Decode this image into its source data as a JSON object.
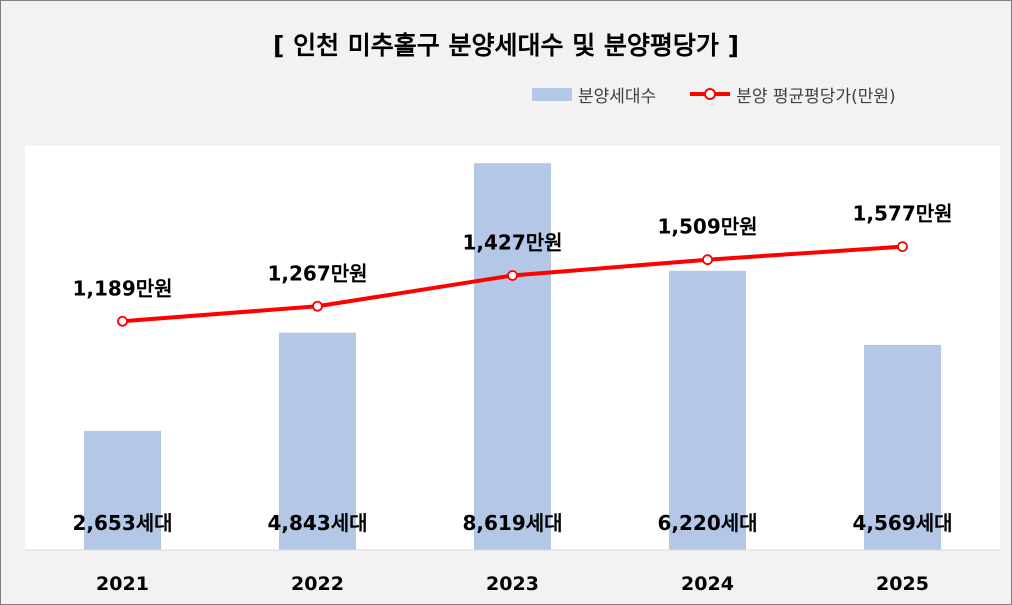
{
  "chart_data": {
    "type": "bar",
    "title": "[ 인천 미추홀구 분양세대수 및 분양평당가 ]",
    "categories": [
      "2021",
      "2022",
      "2023",
      "2024",
      "2025"
    ],
    "series": [
      {
        "name": "분양세대수",
        "type": "bar",
        "values": [
          2653,
          4843,
          8619,
          6220,
          4569
        ],
        "labels": [
          "2,653세대",
          "4,843세대",
          "8,619세대",
          "6,220세대",
          "4,569세대"
        ],
        "color": "#b4c7e7"
      },
      {
        "name": "분양 평균평당가(만원)",
        "type": "line",
        "values": [
          1189,
          1267,
          1427,
          1509,
          1577
        ],
        "labels": [
          "1,189만원",
          "1,267만원",
          "1,427만원",
          "1,509만원",
          "1,577만원"
        ],
        "color": "#ff0000"
      }
    ],
    "bar_axis_range": [
      0,
      9000
    ],
    "line_axis_range": [
      0,
      2100
    ],
    "legend_position": "top-right",
    "grid": false
  }
}
